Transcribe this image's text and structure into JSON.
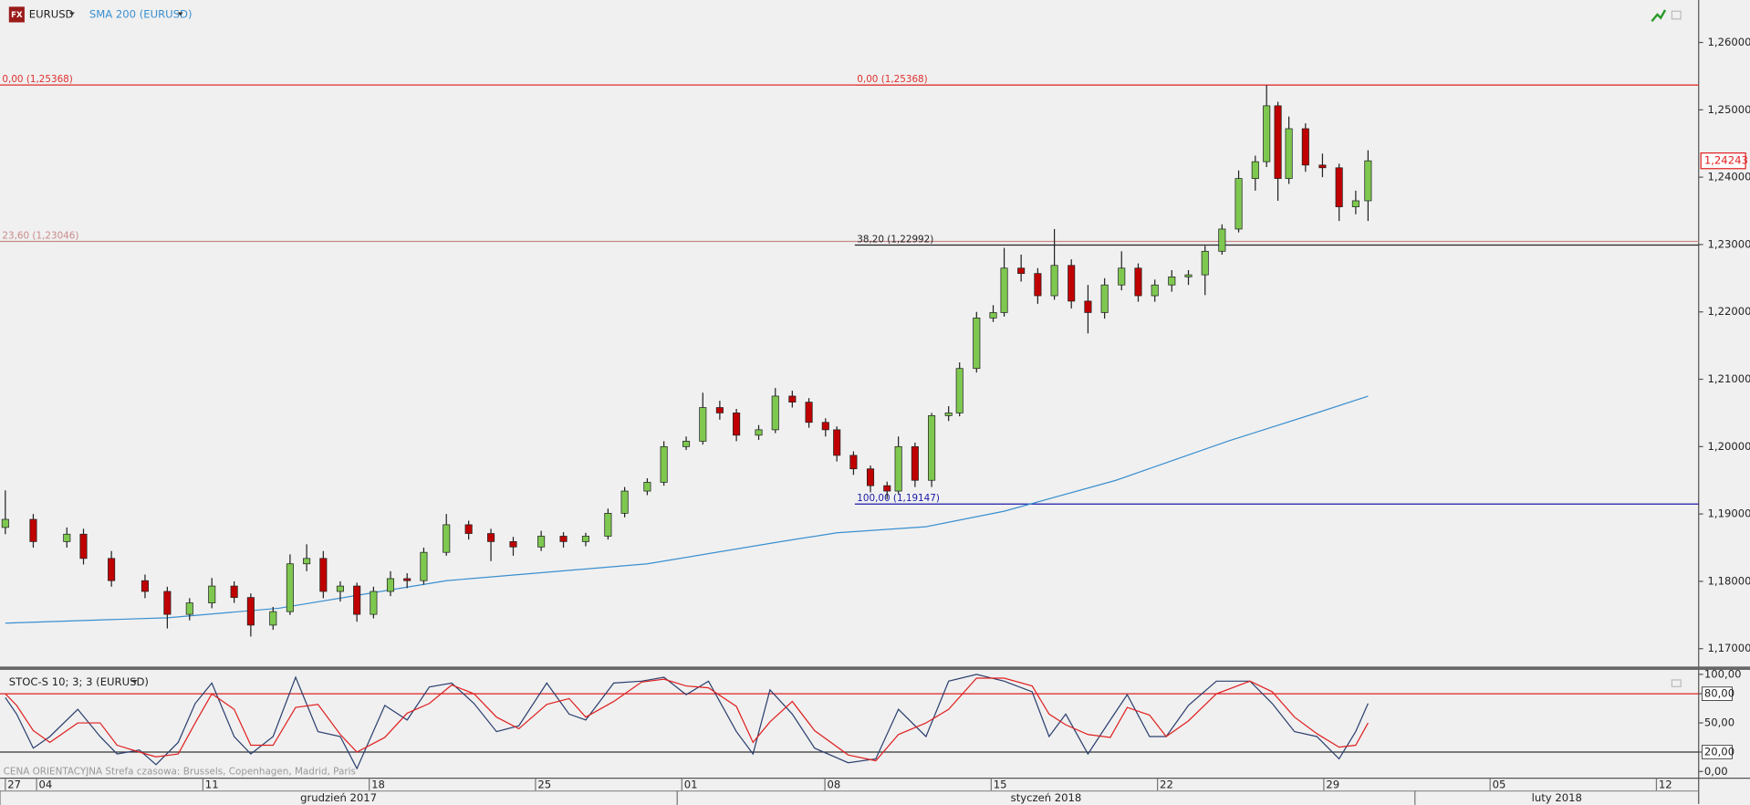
{
  "header": {
    "icon": "FX",
    "symbol": "EURUSD"
  },
  "footer": "CENA ORIENTACYJNA   Strefa czasowa: Brussels, Copenhagen, Madrid, Paris",
  "chart_data": [
    {
      "type": "candlestick",
      "xlim": [
        -1.1,
        49.97
      ],
      "xticks": [
        {
          "value": -0.94,
          "label": "27"
        },
        {
          "value": 0,
          "label": "04"
        },
        {
          "value": 5,
          "label": "11"
        },
        {
          "value": 10,
          "label": "18"
        },
        {
          "value": 15,
          "label": "25"
        },
        {
          "value": 19.4,
          "label": "01"
        },
        {
          "value": 23.7,
          "label": "08"
        },
        {
          "value": 28.7,
          "label": "15"
        },
        {
          "value": 33.7,
          "label": "22"
        },
        {
          "value": 38.7,
          "label": "29"
        },
        {
          "value": 43.7,
          "label": "05"
        },
        {
          "value": 48.7,
          "label": "12"
        }
      ],
      "months": [
        {
          "label": "grudzień 2017",
          "start": -1.1,
          "end": 19.26
        },
        {
          "label": "styczeń 2018",
          "start": 19.26,
          "end": 41.44
        },
        {
          "label": "luty 2018",
          "start": 41.44,
          "end": 49.97
        }
      ],
      "ylim": [
        1.16735,
        1.2663
      ],
      "yticks": [
        {
          "value": 1.17,
          "label": "1,17000"
        },
        {
          "value": 1.18,
          "label": "1,18000"
        },
        {
          "value": 1.19,
          "label": "1,19000"
        },
        {
          "value": 1.2,
          "label": "1,20000"
        },
        {
          "value": 1.21,
          "label": "1,21000"
        },
        {
          "value": 1.22,
          "label": "1,22000"
        },
        {
          "value": 1.23,
          "label": "1,23000"
        },
        {
          "value": 1.24,
          "label": "1,24000"
        },
        {
          "value": 1.25,
          "label": "1,25000"
        },
        {
          "value": 1.26,
          "label": "1,26000"
        }
      ],
      "up_color": "#7ec850",
      "down_color": "#c00000",
      "x": [
        -0.94,
        -0.1,
        0.91,
        1.41,
        2.25,
        3.26,
        3.93,
        4.6,
        5.27,
        5.94,
        6.44,
        7.11,
        7.62,
        8.12,
        8.62,
        9.13,
        9.63,
        10.13,
        10.64,
        11.14,
        11.64,
        12.32,
        12.99,
        13.66,
        14.33,
        15.17,
        15.84,
        16.51,
        17.18,
        17.68,
        18.36,
        18.86,
        19.53,
        20.03,
        20.54,
        21.04,
        21.71,
        22.21,
        22.72,
        23.22,
        23.72,
        24.06,
        24.56,
        25.07,
        25.57,
        25.91,
        26.41,
        26.91,
        27.42,
        27.75,
        28.26,
        28.76,
        29.09,
        29.6,
        30.1,
        30.6,
        31.11,
        31.61,
        32.11,
        32.62,
        33.12,
        33.62,
        34.13,
        34.63,
        35.13,
        35.64,
        36.14,
        36.64,
        36.98,
        37.32,
        37.65,
        38.15,
        38.66,
        39.16,
        39.66,
        40.03
      ],
      "open": [
        1.188,
        1.1892,
        1.1859,
        1.187,
        1.1834,
        1.1801,
        1.1785,
        1.1751,
        1.1768,
        1.1793,
        1.1776,
        1.1735,
        1.1755,
        1.1826,
        1.1834,
        1.1785,
        1.1793,
        1.1751,
        1.1785,
        1.1804,
        1.1801,
        1.1843,
        1.1884,
        1.1871,
        1.1859,
        1.1851,
        1.1867,
        1.1859,
        1.1867,
        1.1901,
        1.1934,
        1.1947,
        1.2,
        1.2008,
        1.2058,
        1.205,
        1.2017,
        1.2025,
        1.2075,
        1.2066,
        1.2036,
        1.2025,
        1.1987,
        1.1967,
        1.1942,
        1.1934,
        1.2,
        1.195,
        1.2046,
        1.205,
        1.2116,
        1.2191,
        1.2199,
        1.2265,
        1.2257,
        1.2224,
        1.2269,
        1.2216,
        1.2199,
        1.224,
        1.2265,
        1.2224,
        1.224,
        1.2252,
        1.2255,
        1.229,
        1.2323,
        1.2398,
        1.2423,
        1.2506,
        1.2398,
        1.2472,
        1.2418,
        1.2414,
        1.2356,
        1.2365
      ],
      "high": [
        1.1935,
        1.19,
        1.188,
        1.1878,
        1.1845,
        1.181,
        1.1792,
        1.1775,
        1.1805,
        1.18,
        1.1782,
        1.1762,
        1.184,
        1.1855,
        1.1845,
        1.18,
        1.1798,
        1.1792,
        1.1815,
        1.1812,
        1.185,
        1.19,
        1.189,
        1.1878,
        1.1866,
        1.1875,
        1.1873,
        1.1872,
        1.1908,
        1.194,
        1.1953,
        1.2008,
        1.2015,
        1.208,
        1.2068,
        1.2056,
        1.2032,
        1.2087,
        1.2083,
        1.2072,
        1.2042,
        1.203,
        1.1993,
        1.1972,
        1.1948,
        1.2015,
        1.2006,
        1.205,
        1.206,
        1.2125,
        1.22,
        1.221,
        1.2295,
        1.2285,
        1.2265,
        1.2323,
        1.2278,
        1.224,
        1.225,
        1.229,
        1.2272,
        1.2248,
        1.2262,
        1.2262,
        1.2298,
        1.233,
        1.241,
        1.2432,
        1.25368,
        1.2512,
        1.249,
        1.248,
        1.2435,
        1.242,
        1.238,
        1.244
      ],
      "low": [
        1.187,
        1.185,
        1.185,
        1.1825,
        1.1792,
        1.1775,
        1.173,
        1.1742,
        1.176,
        1.1768,
        1.1718,
        1.1728,
        1.175,
        1.1815,
        1.1775,
        1.177,
        1.174,
        1.1745,
        1.1778,
        1.179,
        1.1795,
        1.1838,
        1.1862,
        1.183,
        1.1838,
        1.1845,
        1.185,
        1.1852,
        1.1862,
        1.1895,
        1.1928,
        1.1942,
        1.1995,
        1.2003,
        1.204,
        1.2008,
        1.201,
        1.202,
        1.2058,
        1.2028,
        1.2015,
        1.1978,
        1.1958,
        1.1932,
        1.1922,
        1.193,
        1.194,
        1.194,
        1.2038,
        1.2045,
        1.211,
        1.2185,
        1.2193,
        1.2245,
        1.2212,
        1.2218,
        1.2205,
        1.2168,
        1.219,
        1.2232,
        1.2215,
        1.2215,
        1.223,
        1.224,
        1.2225,
        1.2285,
        1.2318,
        1.238,
        1.2415,
        1.2365,
        1.239,
        1.2408,
        1.24,
        1.2335,
        1.2345,
        1.2335
      ],
      "close": [
        1.1892,
        1.1859,
        1.187,
        1.1834,
        1.1801,
        1.1785,
        1.1751,
        1.1768,
        1.1793,
        1.1776,
        1.1735,
        1.1755,
        1.1826,
        1.1834,
        1.1785,
        1.1793,
        1.1751,
        1.1785,
        1.1804,
        1.1801,
        1.1843,
        1.1884,
        1.1871,
        1.1859,
        1.1851,
        1.1867,
        1.1859,
        1.1867,
        1.1901,
        1.1934,
        1.1947,
        1.2,
        1.2008,
        1.2058,
        1.205,
        1.2017,
        1.2025,
        1.2075,
        1.2066,
        1.2036,
        1.2025,
        1.1987,
        1.1967,
        1.1942,
        1.1934,
        1.2,
        1.195,
        1.2046,
        1.205,
        1.2116,
        1.2191,
        1.2199,
        1.2265,
        1.2257,
        1.2224,
        1.2269,
        1.2216,
        1.2199,
        1.224,
        1.2265,
        1.2224,
        1.224,
        1.2252,
        1.2255,
        1.229,
        1.2323,
        1.2398,
        1.2423,
        1.2506,
        1.2398,
        1.2472,
        1.2418,
        1.2414,
        1.2356,
        1.2365,
        1.24243
      ],
      "last_price": {
        "value": 1.24243,
        "label": "1,24243"
      },
      "sma": {
        "name": "SMA 200 (EURUSD)",
        "color": "#3a8fd0",
        "x": [
          -0.94,
          3.93,
          7.28,
          12.32,
          18.36,
          22.38,
          24.06,
          26.74,
          29.09,
          32.45,
          35.81,
          38.49,
          40.03
        ],
        "values": [
          1.1738,
          1.1746,
          1.176,
          1.1801,
          1.1826,
          1.1859,
          1.1872,
          1.1881,
          1.1904,
          1.195,
          1.2008,
          1.205,
          1.2075
        ]
      },
      "fibs": [
        {
          "x_start": -1.1,
          "levels": [
            {
              "label": "0,00 (1,25368)",
              "value": 1.25368,
              "color": "#e03030"
            },
            {
              "label": "23,60 (1,23046)",
              "value": 1.23046,
              "color": "#c98a8a"
            }
          ]
        },
        {
          "x_start": 24.6,
          "levels": [
            {
              "label": "0,00 (1,25368)",
              "value": 1.25368,
              "color": "#e03030"
            },
            {
              "label": "38,20 (1,22992)",
              "value": 1.22992,
              "color": "#222222"
            },
            {
              "label": "100,00 (1,19147)",
              "value": 1.19147,
              "color": "#1a1aa8"
            }
          ]
        }
      ]
    },
    {
      "type": "line",
      "title": "STOC-S 10; 3; 3 (EURUSD)",
      "ylim": [
        -6.9,
        105.7
      ],
      "yticks": [
        {
          "value": 0,
          "label": "0,00"
        },
        {
          "value": 20,
          "label": "20,00"
        },
        {
          "value": 50,
          "label": "50,00"
        },
        {
          "value": 80,
          "label": "80,00"
        },
        {
          "value": 100,
          "label": "100,00"
        }
      ],
      "levels": [
        {
          "value": 80,
          "color": "#e02020"
        },
        {
          "value": 20,
          "color": "#333333"
        }
      ],
      "x": [
        -0.94,
        -0.6,
        -0.1,
        0.4,
        1.24,
        1.91,
        2.42,
        3.09,
        3.59,
        4.26,
        4.77,
        5.27,
        5.94,
        6.44,
        7.11,
        7.79,
        8.46,
        9.13,
        9.63,
        10.47,
        11.14,
        11.81,
        12.48,
        13.15,
        13.83,
        14.5,
        15.34,
        16.01,
        16.51,
        17.35,
        18.19,
        18.86,
        19.53,
        20.2,
        21.04,
        21.54,
        22.05,
        22.72,
        23.39,
        24.4,
        25.23,
        25.91,
        26.74,
        27.42,
        28.26,
        29.09,
        29.93,
        30.44,
        30.94,
        31.61,
        32.28,
        32.79,
        33.46,
        33.96,
        34.63,
        35.47,
        36.48,
        37.15,
        37.82,
        38.49,
        39.16,
        39.66,
        40.03
      ],
      "series": [
        {
          "color": "#2b3f6e",
          "values": [
            76,
            59,
            24,
            36,
            64,
            36,
            18,
            22,
            7,
            30,
            70,
            91,
            36,
            18,
            36,
            97,
            41,
            36,
            3,
            68,
            53,
            87,
            91,
            70,
            41,
            47,
            91,
            59,
            53,
            91,
            93,
            97,
            79,
            93,
            41,
            18,
            84,
            59,
            24,
            9,
            13,
            64,
            36,
            93,
            100,
            93,
            82,
            36,
            59,
            18,
            53,
            79,
            36,
            36,
            68,
            93,
            93,
            70,
            41,
            36,
            13,
            41,
            70
          ]
        },
        {
          "color": "#e02020",
          "values": [
            80,
            68,
            42,
            30,
            50,
            50,
            27,
            20,
            15,
            18,
            50,
            80,
            64,
            27,
            27,
            66,
            69,
            38,
            20,
            35,
            60,
            70,
            89,
            80,
            56,
            44,
            69,
            75,
            56,
            72,
            92,
            95,
            88,
            86,
            67,
            30,
            51,
            72,
            42,
            17,
            11,
            38,
            50,
            64,
            96,
            96,
            88,
            59,
            48,
            38,
            35,
            66,
            58,
            36,
            52,
            80,
            93,
            82,
            56,
            39,
            25,
            27,
            50
          ]
        }
      ]
    }
  ]
}
